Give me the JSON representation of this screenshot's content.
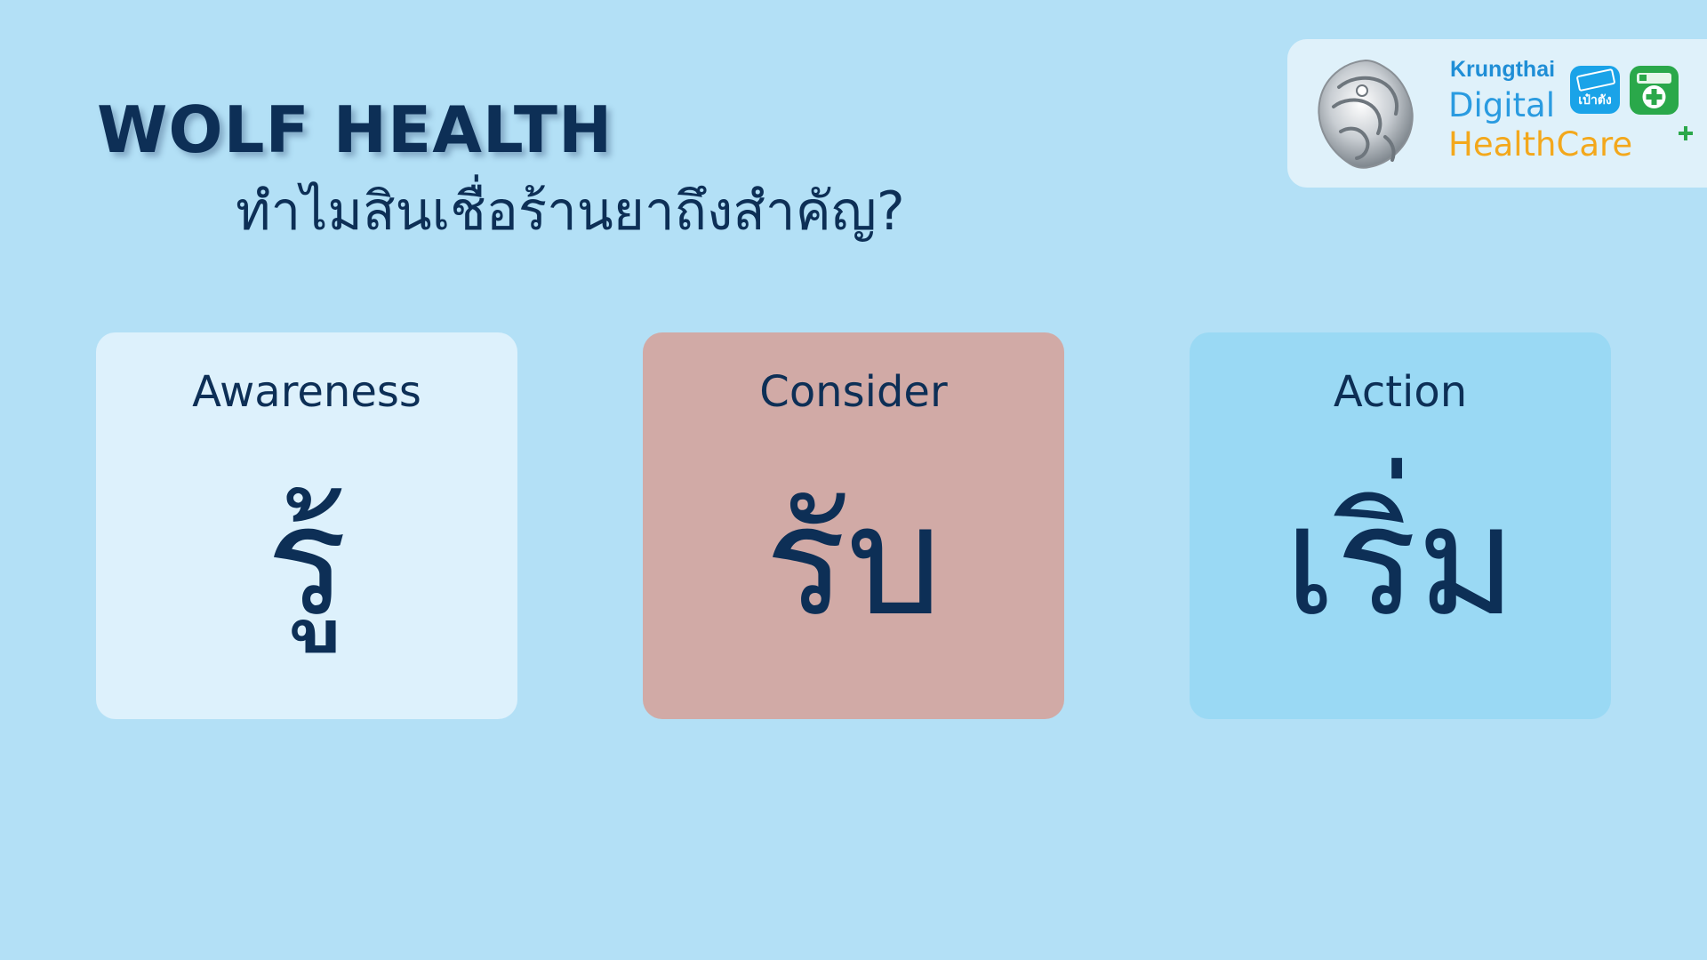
{
  "header": {
    "title": "WOLF HEALTH",
    "subtitle": "ทำไมสินเชื่อร้านยาถึงสำคัญ?"
  },
  "logo": {
    "brand_line1": "Krungthai",
    "brand_line2": "Digital",
    "brand_line3": "HealthCare",
    "paotang_label": "เป๋าตัง",
    "emblem_icon": "garuda-emblem-icon",
    "paotang_icon": "paotang-app-icon",
    "health_icon": "health-app-icon",
    "colors": {
      "krungthai_blue": "#1f8ed6",
      "healthcare_orange": "#f3a81c",
      "plus_green": "#2aa84a"
    }
  },
  "cards": [
    {
      "label": "Awareness",
      "word": "รู้",
      "color": "#ddf1fc"
    },
    {
      "label": "Consider",
      "word": "รับ",
      "color": "#d1aaa6"
    },
    {
      "label": "Action",
      "word": "เริ่ม",
      "color": "#9ad9f4"
    }
  ],
  "colors": {
    "background": "#b3e0f6",
    "text": "#0d2f56"
  }
}
